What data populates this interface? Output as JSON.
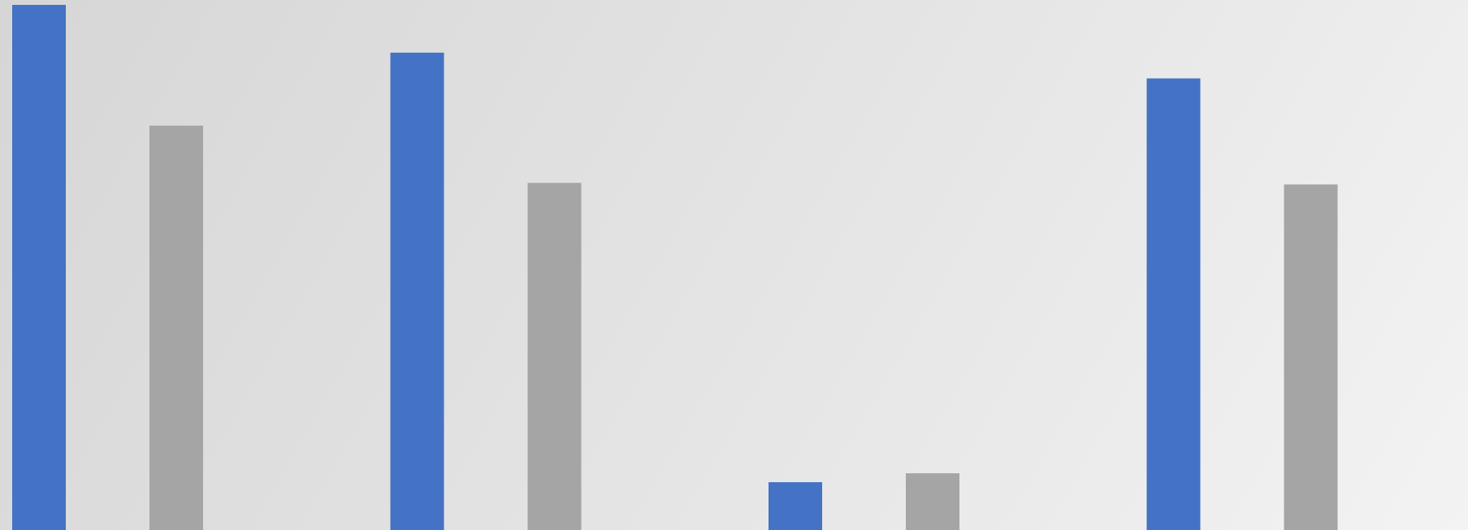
{
  "colors": {
    "series_blue": "#4472C4",
    "series_gray": "#A5A5A5"
  },
  "chart_data": {
    "type": "bar",
    "title": "",
    "xlabel": "",
    "ylabel": "",
    "categories": [
      "",
      "",
      "",
      ""
    ],
    "ylim": [
      0,
      100
    ],
    "grid": false,
    "legend": "none",
    "series": [
      {
        "values": [
          100,
          90.9,
          9.1,
          86.0
        ],
        "color": "#4472C4"
      },
      {
        "values": [
          77.0,
          66.1,
          10.8,
          65.8
        ],
        "color": "#A5A5A5"
      }
    ]
  }
}
